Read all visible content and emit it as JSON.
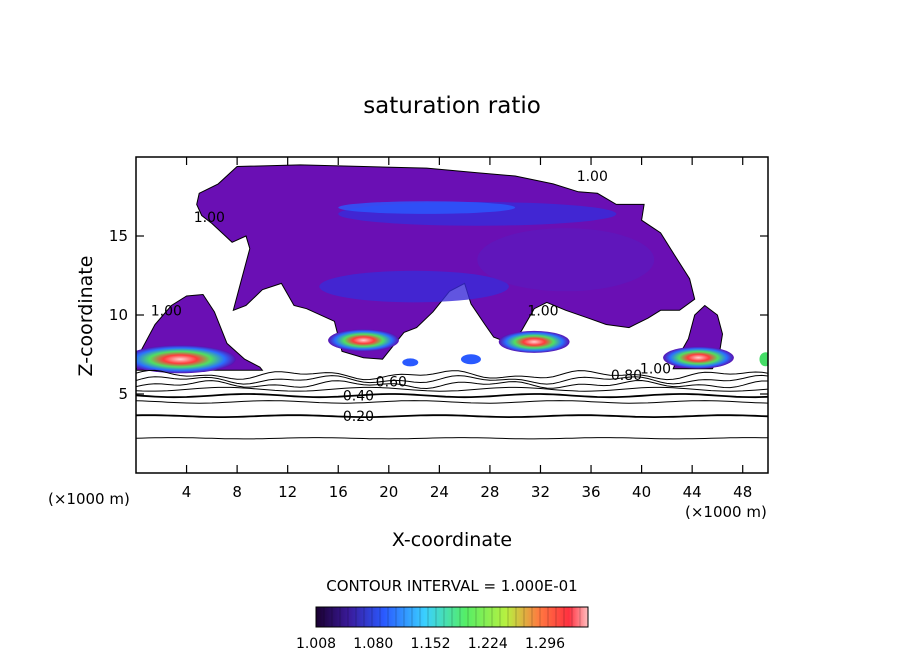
{
  "chart_data": {
    "type": "contour",
    "title": "saturation ratio",
    "xlabel": "X-coordinate",
    "ylabel": "Z-coordinate",
    "x_unit_left": "(×1000 m)",
    "x_unit_right": "(×1000 m)",
    "xlim": [
      0,
      50
    ],
    "ylim": [
      0,
      20
    ],
    "x_ticks": [
      4,
      8,
      12,
      16,
      20,
      24,
      28,
      32,
      36,
      40,
      44,
      48
    ],
    "y_ticks": [
      5,
      10,
      15
    ],
    "contour_interval_text": "CONTOUR INTERVAL = 1.000E-01",
    "contour_labels": [
      {
        "text": "0.20",
        "x": 17.6,
        "y": 3.6
      },
      {
        "text": "0.40",
        "x": 17.6,
        "y": 4.9
      },
      {
        "text": "0.60",
        "x": 20.2,
        "y": 5.8
      },
      {
        "text": "0.80",
        "x": 38.8,
        "y": 6.2
      },
      {
        "text": "1.00",
        "x": 41.1,
        "y": 6.6
      },
      {
        "text": "1.00",
        "x": 2.4,
        "y": 10.3
      },
      {
        "text": "1.00",
        "x": 5.8,
        "y": 16.2
      },
      {
        "text": "1.00",
        "x": 32.2,
        "y": 10.3
      },
      {
        "text": "1.00",
        "x": 36.1,
        "y": 18.8
      }
    ],
    "colorbar": {
      "ticks": [
        "1.008",
        "1.080",
        "1.152",
        "1.224",
        "1.296"
      ],
      "min": 1.008,
      "max": 1.35
    },
    "features": {
      "supersaturated_cloud_top": 19.4,
      "cloud_base": 7.0,
      "hotspots": [
        {
          "x": 3.5,
          "y": 7.2,
          "value": 1.3
        },
        {
          "x": 18.0,
          "y": 8.4,
          "value": 1.25
        },
        {
          "x": 31.5,
          "y": 8.3,
          "value": 1.28
        },
        {
          "x": 44.5,
          "y": 7.3,
          "value": 1.26
        }
      ]
    }
  }
}
